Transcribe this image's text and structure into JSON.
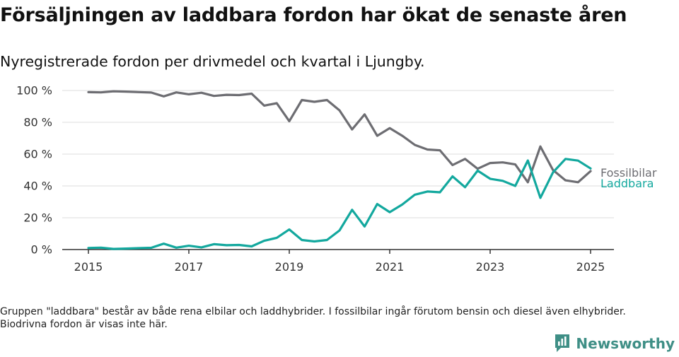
{
  "header": {
    "title": "Försäljningen av laddbara fordon har ökat de senaste åren",
    "subtitle": "Nyregistrerade fordon per drivmedel och kvartal i Ljungby."
  },
  "footnote": "Gruppen \"laddbara\" består av både rena elbilar och laddhybrider. I fossilbilar ingår förutom bensin och diesel även elhybrider. Biodrivna fordon är visas inte här.",
  "brand": {
    "name": "Newsworthy",
    "color": "#3f8f86"
  },
  "chart_data": {
    "type": "line",
    "title": "Försäljningen av laddbara fordon har ökat de senaste åren",
    "subtitle": "Nyregistrerade fordon per drivmedel och kvartal i Ljungby.",
    "xlabel": "",
    "ylabel": "",
    "xlim": [
      2015,
      2025
    ],
    "ylim": [
      0,
      100
    ],
    "x_ticks": [
      2015,
      2017,
      2019,
      2021,
      2023,
      2025
    ],
    "x_tick_labels": [
      "2015",
      "2017",
      "2019",
      "2021",
      "2023",
      "2025"
    ],
    "y_ticks": [
      0,
      20,
      40,
      60,
      80,
      100
    ],
    "y_tick_labels": [
      "0 %",
      "20 %",
      "40 %",
      "60 %",
      "80 %",
      "100 %"
    ],
    "grid": true,
    "x": [
      2015,
      2015.25,
      2015.5,
      2015.75,
      2016,
      2016.25,
      2016.5,
      2016.75,
      2017,
      2017.25,
      2017.5,
      2017.75,
      2018,
      2018.25,
      2018.5,
      2018.75,
      2019,
      2019.25,
      2019.5,
      2019.75,
      2020,
      2020.25,
      2020.5,
      2020.75,
      2021,
      2021.25,
      2021.5,
      2021.75,
      2022,
      2022.25,
      2022.5,
      2022.75,
      2023,
      2023.25,
      2023.5,
      2023.75,
      2024,
      2024.25,
      2024.5,
      2024.75,
      2025
    ],
    "series": [
      {
        "name": "Fossilbilar",
        "color": "#6d6d72",
        "values": [
          99,
          98.8,
          99.5,
          99.3,
          99,
          98.7,
          96.3,
          98.8,
          97.6,
          98.6,
          96.6,
          97.3,
          97.1,
          98,
          90.5,
          92,
          80.7,
          94,
          92.9,
          94,
          87.5,
          75.5,
          85,
          71.5,
          76.3,
          71.5,
          65.8,
          62.9,
          62.4,
          53.1,
          57,
          50.8,
          54.4,
          54.8,
          53.5,
          42.3,
          64.8,
          50,
          43.5,
          42.3,
          49.3
        ]
      },
      {
        "name": "Laddbara",
        "color": "#13a89e",
        "values": [
          1,
          1.2,
          0.4,
          0.6,
          0.9,
          1.1,
          3.7,
          1.2,
          2.4,
          1.4,
          3.4,
          2.7,
          2.9,
          2,
          5.5,
          7.4,
          12.6,
          6,
          5.1,
          6,
          12,
          25,
          14.5,
          28.6,
          23.5,
          28.3,
          34.5,
          36.5,
          36,
          46,
          39.2,
          49.6,
          44.5,
          43.2,
          40,
          56,
          32.5,
          48.5,
          57,
          55.9,
          51
        ]
      }
    ],
    "legend": "inline labels at line ends (right)"
  }
}
